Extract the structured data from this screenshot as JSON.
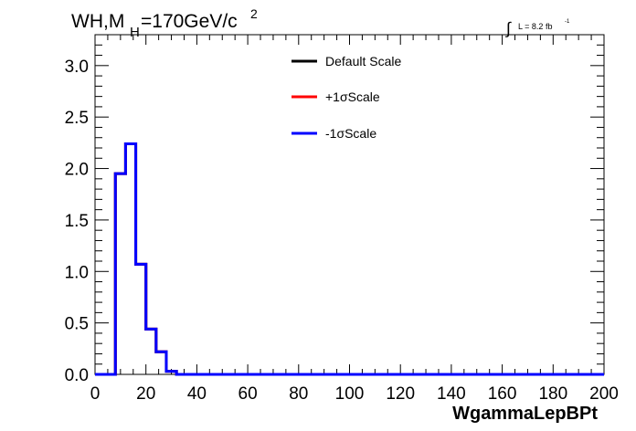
{
  "chart_data": {
    "type": "line",
    "title_main": "WH,M",
    "title_sub": "H",
    "title_rest": "=170GeV/c",
    "title_sup": "2",
    "lumi_integral": "∫",
    "lumi_text": "L = 8.2 fb",
    "lumi_sup": "-1",
    "xlabel": "WgammaLepBPt",
    "ylabel": "",
    "xlim": [
      0,
      200
    ],
    "ylim": [
      0,
      3.3
    ],
    "x_ticks": [
      "0",
      "20",
      "40",
      "60",
      "80",
      "100",
      "120",
      "140",
      "160",
      "180",
      "200"
    ],
    "y_ticks": [
      "0.0",
      "0.5",
      "1.0",
      "1.5",
      "2.0",
      "2.5",
      "3.0"
    ],
    "legend_position": "top-center",
    "series": [
      {
        "name": "Default Scale",
        "color": "#000000"
      },
      {
        "name": "+1σScale",
        "color": "#ff0000"
      },
      {
        "name": "-1σScale",
        "color": "#0000ff"
      }
    ],
    "bin_edges": [
      0,
      4,
      8,
      12,
      16,
      20,
      24,
      28,
      32,
      36,
      40,
      44,
      48,
      52,
      56,
      60,
      64,
      68,
      72,
      76,
      80,
      84,
      88,
      92,
      96,
      100,
      104,
      108,
      112,
      116,
      120,
      124,
      128,
      132,
      136,
      140,
      144,
      148,
      152,
      156,
      160,
      164,
      168,
      172,
      176,
      180,
      184,
      188,
      192,
      196,
      200
    ],
    "values": [
      0,
      0,
      1.95,
      2.24,
      1.07,
      0.44,
      0.22,
      0.03,
      0,
      0,
      0,
      0,
      0,
      0,
      0,
      0,
      0,
      0,
      0,
      0,
      0,
      0,
      0,
      0,
      0,
      0,
      0,
      0,
      0,
      0,
      0,
      0,
      0,
      0,
      0,
      0,
      0,
      0,
      0,
      0,
      0,
      0,
      0,
      0,
      0,
      0,
      0,
      0,
      0,
      0
    ]
  }
}
